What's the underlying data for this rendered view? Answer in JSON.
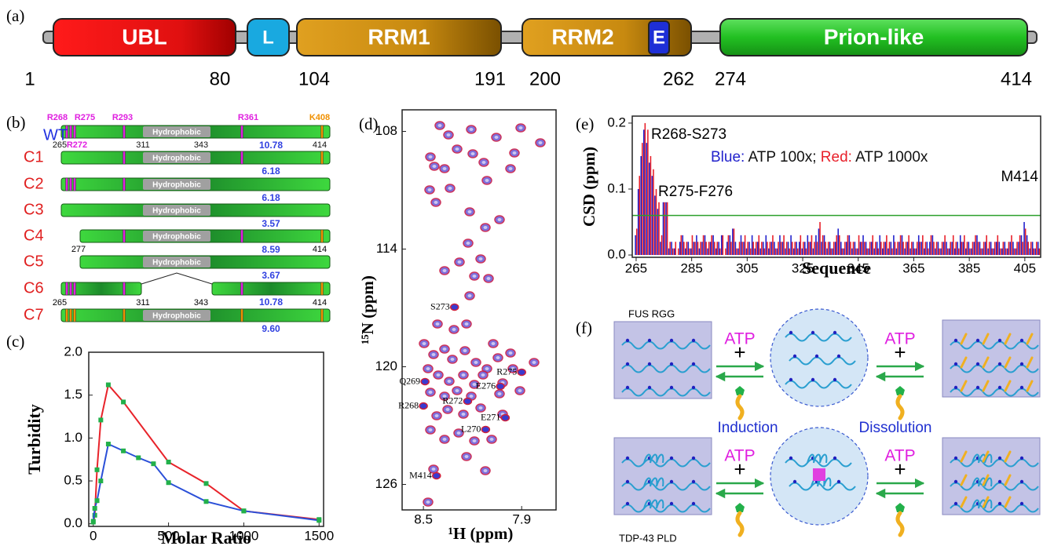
{
  "panel_labels": [
    "(a)",
    "(b)",
    "(c)",
    "(d)",
    "(e)",
    "(f)"
  ],
  "domains": {
    "labels": [
      "UBL",
      "L",
      "RRM1",
      "RRM2",
      "E",
      "Prion-like"
    ],
    "numbers": [
      1,
      80,
      104,
      191,
      200,
      262,
      274,
      414
    ]
  },
  "constructs": {
    "hydrophobic_label": "Hydrophobic",
    "top_labels": [
      "R268",
      "R275",
      "R293",
      "R361",
      "K408"
    ],
    "wt_bottom_labels": [
      265,
      "R272",
      311,
      343,
      414
    ],
    "c4_labels": [
      277,
      414
    ],
    "c6_labels": [
      265,
      311,
      343,
      414
    ],
    "rows": [
      {
        "name": "WT",
        "value": "10.78"
      },
      {
        "name": "C1",
        "value": "6.18"
      },
      {
        "name": "C2",
        "value": "6.18"
      },
      {
        "name": "C3",
        "value": "3.57"
      },
      {
        "name": "C4",
        "value": "8.59"
      },
      {
        "name": "C5",
        "value": "3.67"
      },
      {
        "name": "C6",
        "value": "10.78"
      },
      {
        "name": "C7",
        "value": "9.60"
      }
    ]
  },
  "scheme": {
    "top_label": "FUS RGG",
    "bottom_label": "TDP-43 PLD",
    "atp": [
      "ATP",
      "ATP",
      "ATP",
      "ATP"
    ],
    "plus": [
      "+",
      "+",
      "+",
      "+"
    ],
    "induction": "Induction",
    "dissolution": "Dissolution"
  },
  "chart_data": [
    {
      "type": "line",
      "xlabel": "Molar Ratio",
      "ylabel": "Turbidity",
      "xlim": [
        -30,
        1530
      ],
      "ylim": [
        -0.03,
        2.0
      ],
      "xticks": [
        0,
        500,
        1000,
        1500
      ],
      "yticks": [
        {
          "value": 0,
          "label": "0.0"
        },
        0.5,
        {
          "value": 1,
          "label": "1.0"
        },
        1.5,
        {
          "value": 2,
          "label": "2.0"
        }
      ],
      "marker_color": "#22b04a",
      "series": [
        {
          "color": "#e8232a",
          "x": [
            0,
            10,
            25,
            50,
            100,
            200,
            500,
            750,
            1000,
            1500
          ],
          "values": [
            0.02,
            0.1,
            0.63,
            1.21,
            1.62,
            1.42,
            0.72,
            0.47,
            0.15,
            0.05
          ]
        },
        {
          "color": "#2a4fd8",
          "x": [
            0,
            10,
            25,
            50,
            100,
            200,
            300,
            400,
            500,
            750,
            1000,
            1500
          ],
          "values": [
            0.03,
            0.18,
            0.27,
            0.5,
            0.93,
            0.85,
            0.77,
            0.7,
            0.48,
            0.26,
            0.15,
            0.04
          ]
        }
      ]
    },
    {
      "type": "scatter",
      "xlabel": "¹H (ppm)",
      "ylabel": "¹⁵N (ppm)",
      "xlim": [
        8.63,
        7.69
      ],
      "ylim": [
        127.3,
        106.9
      ],
      "xticks": [
        8.5,
        7.9
      ],
      "yticks": [
        108,
        114,
        120,
        126
      ],
      "colors": [
        "#3a3ad0",
        "#d0203a"
      ],
      "points": [
        {
          "label": "S273",
          "x": 8.31,
          "y": 116.96
        },
        {
          "label": "R275",
          "x": 7.9,
          "y": 120.28
        },
        {
          "label": "Q269",
          "x": 8.49,
          "y": 120.76
        },
        {
          "label": "E276",
          "x": 8.03,
          "y": 121.0
        },
        {
          "label": "R268",
          "x": 8.5,
          "y": 122.0
        },
        {
          "label": "R272",
          "x": 8.23,
          "y": 121.76
        },
        {
          "label": "E271",
          "x": 8.0,
          "y": 122.6
        },
        {
          "label": "L270",
          "x": 8.12,
          "y": 123.2
        },
        {
          "label": "M414",
          "x": 8.42,
          "y": 125.56
        }
      ]
    },
    {
      "type": "bar",
      "xlabel": "Sequence",
      "ylabel": "CSD (ppm)",
      "xlim": [
        263.6,
        410.7
      ],
      "ylim": [
        -0.0035,
        0.2106
      ],
      "xticks": [
        265,
        285,
        305,
        325,
        345,
        365,
        385,
        405
      ],
      "yticks": [
        {
          "value": 0,
          "label": "0.0"
        },
        0.1,
        0.2
      ],
      "threshold": 0.06,
      "threshold_color": "#2ca02c",
      "annotations": [
        "R268-S273",
        "R275-F276",
        "M414"
      ],
      "legend_text": [
        {
          "text": "Blue:",
          "color": "#2222cc"
        },
        {
          "text": " ATP 100x;"
        },
        {
          "text": " Red:",
          "color": "#e8202a"
        },
        {
          "text": " ATP 1000x"
        }
      ],
      "x": [
        265,
        266,
        267,
        268,
        269,
        270,
        271,
        272,
        273,
        274,
        275,
        276,
        277,
        278,
        279,
        280,
        281,
        282,
        283,
        284,
        285,
        286,
        287,
        288,
        289,
        290,
        291,
        292,
        293,
        294,
        295,
        296,
        297,
        298,
        299,
        300,
        301,
        302,
        303,
        304,
        305,
        306,
        307,
        308,
        309,
        310,
        311,
        312,
        313,
        314,
        315,
        316,
        317,
        318,
        319,
        320,
        321,
        322,
        323,
        324,
        325,
        326,
        327,
        328,
        329,
        330,
        331,
        332,
        333,
        334,
        335,
        336,
        337,
        338,
        339,
        340,
        341,
        342,
        343,
        344,
        345,
        346,
        347,
        348,
        349,
        350,
        351,
        352,
        353,
        354,
        355,
        356,
        357,
        358,
        359,
        360,
        361,
        362,
        363,
        364,
        365,
        366,
        367,
        368,
        369,
        370,
        371,
        372,
        373,
        374,
        375,
        376,
        377,
        378,
        379,
        380,
        381,
        382,
        383,
        384,
        385,
        386,
        387,
        388,
        389,
        390,
        391,
        392,
        393,
        394,
        395,
        396,
        397,
        398,
        399,
        400,
        401,
        402,
        403,
        404,
        405,
        406,
        407,
        408,
        409,
        410
      ],
      "series": [
        {
          "color": "#2222cc",
          "values": [
            0.03,
            0.1,
            0.15,
            0.19,
            0.17,
            0.14,
            0.12,
            0.09,
            0.07,
            0.02,
            0.08,
            0.08,
            0.01,
            0.02,
            0.01,
            0.0,
            0.02,
            0.03,
            0.01,
            0.02,
            0.01,
            0.02,
            0.03,
            0.01,
            0.02,
            0.03,
            0.01,
            0.02,
            0.03,
            0.01,
            0.02,
            0.03,
            0.0,
            0.02,
            0.03,
            0.04,
            0.02,
            0.01,
            0.03,
            0.02,
            0.01,
            0.02,
            0.03,
            0.01,
            0.02,
            0.01,
            0.02,
            0.03,
            0.01,
            0.02,
            0.02,
            0.01,
            0.03,
            0.02,
            0.01,
            0.02,
            0.03,
            0.01,
            0.02,
            0.02,
            0.01,
            0.02,
            0.03,
            0.02,
            0.01,
            0.03,
            0.04,
            0.02,
            0.03,
            0.01,
            0.02,
            0.01,
            0.02,
            0.04,
            0.02,
            0.01,
            0.02,
            0.03,
            0.01,
            0.02,
            0.01,
            0.02,
            0.03,
            0.02,
            0.01,
            0.02,
            0.01,
            0.02,
            0.03,
            0.01,
            0.02,
            0.01,
            0.02,
            0.03,
            0.01,
            0.02,
            0.03,
            0.01,
            0.02,
            0.01,
            0.02,
            0.01,
            0.03,
            0.02,
            0.01,
            0.02,
            0.02,
            0.03,
            0.01,
            0.02,
            0.01,
            0.02,
            0.02,
            0.01,
            0.02,
            0.01,
            0.02,
            0.03,
            0.02,
            0.01,
            0.02,
            0.01,
            0.02,
            0.03,
            0.02,
            0.01,
            0.02,
            0.01,
            0.02,
            0.01,
            0.02,
            0.02,
            0.01,
            0.02,
            0.01,
            0.02,
            0.02,
            0.01,
            0.02,
            0.03,
            0.05,
            0.03,
            0.01,
            0.02,
            0.01,
            0.02
          ]
        },
        {
          "color": "#e8202a",
          "values": [
            0.04,
            0.12,
            0.17,
            0.2,
            0.19,
            0.15,
            0.13,
            0.1,
            0.08,
            0.03,
            0.08,
            0.08,
            0.02,
            0.01,
            0.02,
            0.01,
            0.03,
            0.02,
            0.02,
            0.01,
            0.03,
            0.02,
            0.02,
            0.02,
            0.03,
            0.02,
            0.02,
            0.03,
            0.02,
            0.02,
            0.01,
            0.03,
            0.01,
            0.03,
            0.02,
            0.04,
            0.01,
            0.02,
            0.02,
            0.03,
            0.02,
            0.01,
            0.02,
            0.02,
            0.03,
            0.02,
            0.01,
            0.02,
            0.02,
            0.03,
            0.01,
            0.02,
            0.02,
            0.03,
            0.02,
            0.01,
            0.02,
            0.02,
            0.01,
            0.03,
            0.02,
            0.01,
            0.02,
            0.03,
            0.02,
            0.02,
            0.05,
            0.03,
            0.02,
            0.02,
            0.01,
            0.02,
            0.03,
            0.03,
            0.01,
            0.02,
            0.03,
            0.02,
            0.02,
            0.01,
            0.03,
            0.02,
            0.02,
            0.01,
            0.02,
            0.03,
            0.02,
            0.01,
            0.02,
            0.02,
            0.03,
            0.02,
            0.01,
            0.02,
            0.02,
            0.03,
            0.02,
            0.02,
            0.03,
            0.02,
            0.01,
            0.02,
            0.02,
            0.03,
            0.02,
            0.01,
            0.03,
            0.02,
            0.02,
            0.01,
            0.02,
            0.03,
            0.01,
            0.02,
            0.03,
            0.02,
            0.01,
            0.02,
            0.03,
            0.02,
            0.01,
            0.02,
            0.03,
            0.02,
            0.01,
            0.02,
            0.03,
            0.02,
            0.01,
            0.02,
            0.03,
            0.01,
            0.02,
            0.01,
            0.02,
            0.03,
            0.01,
            0.02,
            0.03,
            0.02,
            0.04,
            0.02,
            0.02,
            0.01,
            0.02,
            0.01
          ]
        }
      ]
    }
  ]
}
